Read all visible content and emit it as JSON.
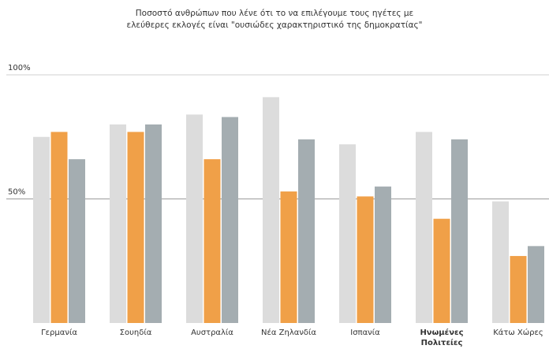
{
  "chart_data": {
    "type": "bar",
    "title": [
      "Ποσοστό ανθρώπων που λένε ότι το να επιλέγουμε τους ηγέτες με",
      "ελεύθερες εκλογές είναι \"ουσιώδες χαρακτηριστικό της δημοκρατίας\""
    ],
    "categories": [
      [
        "Γερμανία"
      ],
      [
        "Σουηδία"
      ],
      [
        "Αυστραλία"
      ],
      [
        "Νέα Ζηλανδία"
      ],
      [
        "Ισπανία"
      ],
      [
        "Ηνωμένες",
        "Πολιτείες"
      ],
      [
        "Κάτω Χώρες"
      ]
    ],
    "highlight_category": 5,
    "series": [
      {
        "name": "series-1",
        "color": "#dcdcdc",
        "values": [
          75,
          80,
          84,
          91,
          72,
          77,
          49
        ]
      },
      {
        "name": "series-2",
        "color": "#f0a048",
        "values": [
          77,
          77,
          66,
          53,
          51,
          42,
          27
        ]
      },
      {
        "name": "series-3",
        "color": "#a4adb1",
        "values": [
          66,
          80,
          83,
          74,
          55,
          74,
          31
        ]
      }
    ],
    "yticks": [
      {
        "value": 100,
        "label": "100%"
      },
      {
        "value": 50,
        "label": "50%"
      }
    ],
    "ylim": [
      0,
      100
    ],
    "xlabel": "",
    "ylabel": ""
  }
}
